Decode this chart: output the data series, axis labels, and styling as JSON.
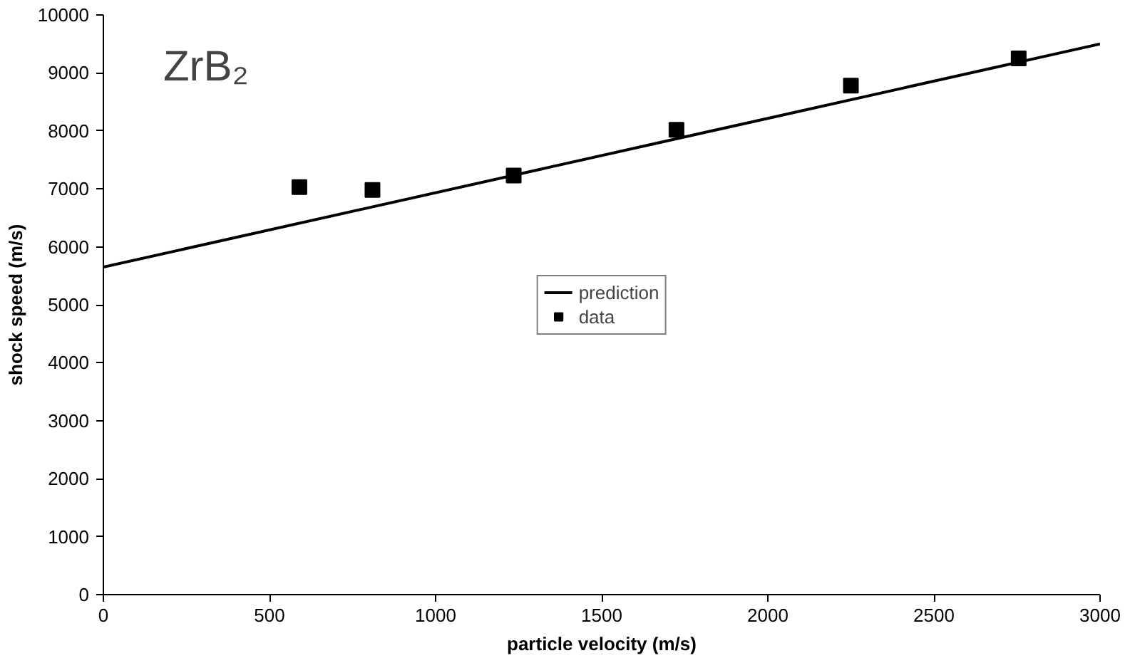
{
  "chart_data": {
    "type": "scatter",
    "title": "ZrB₂",
    "xlabel": "particle velocity (m/s)",
    "ylabel": "shock speed (m/s)",
    "xlim": [
      0,
      3000
    ],
    "xticks": [
      0,
      500,
      1000,
      1500,
      2000,
      2500,
      3000
    ],
    "ylim": [
      0,
      10000
    ],
    "yticks": [
      0,
      1000,
      2000,
      3000,
      4000,
      5000,
      6000,
      7000,
      8000,
      9000,
      10000
    ],
    "grid": false,
    "legend": "center",
    "series": [
      {
        "name": "prediction",
        "type": "line",
        "color": "#000000",
        "line_style": "solid",
        "marker": "none",
        "x": [
          0,
          3000
        ],
        "values": [
          5650,
          9500
        ]
      },
      {
        "name": "data",
        "color": "#000000",
        "marker": "square",
        "x": [
          590,
          810,
          1235,
          1725,
          2250,
          2755
        ],
        "values": [
          7030,
          6980,
          7230,
          8020,
          8780,
          9250
        ]
      }
    ]
  }
}
